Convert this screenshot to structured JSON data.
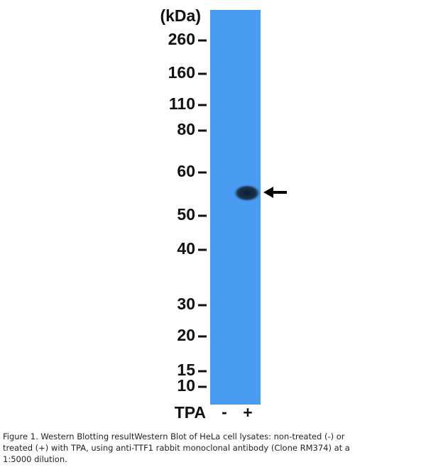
{
  "unit_label": "(kDa)",
  "markers": [
    "260",
    "160",
    "110",
    "80",
    "60",
    "50",
    "40",
    "30",
    "20",
    "15",
    "10"
  ],
  "lane_row": {
    "label": "TPA",
    "lanes": [
      "-",
      "+"
    ]
  },
  "caption": [
    "Figure 1. Western Blotting resultWestern Blot of HeLa cell lysates: non-treated (-) or",
    "treated (+) with TPA, using anti-TTF1 rabbit monoclonal antibody (Clone RM374) at a",
    "1:5000 dilution."
  ]
}
